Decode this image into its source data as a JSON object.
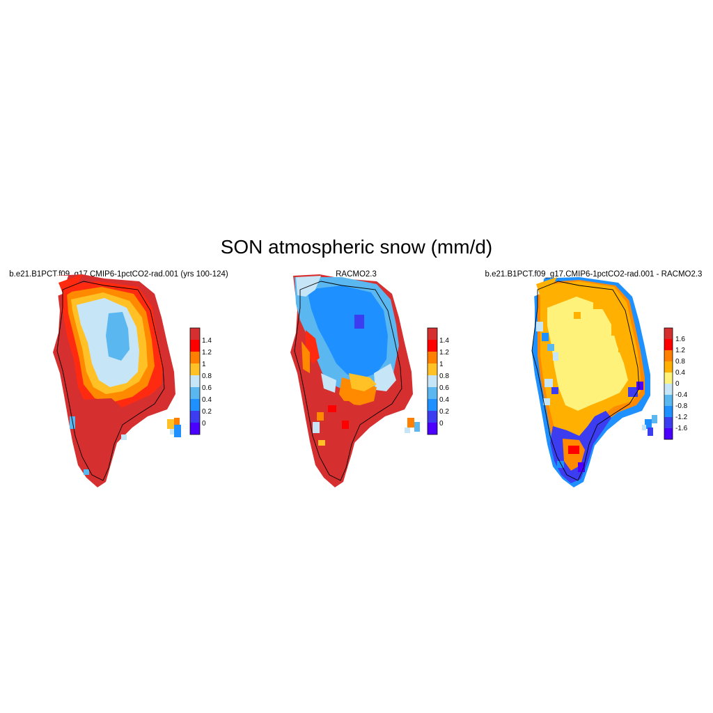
{
  "figure": {
    "title": "SON atmospheric snow (mm/d)"
  },
  "panels": [
    {
      "title": "b.e21.B1PCT.f09_g17.CMIP6-1pctCO2-rad.001 (yrs 100-124)",
      "colorbar": {
        "labels": [
          "1.4",
          "1.2",
          "1",
          "0.8",
          "0.6",
          "0.4",
          "0.2",
          "0"
        ],
        "colors": [
          "#d62f2f",
          "#ff0000",
          "#ff7f00",
          "#ffc125",
          "#c6e6f8",
          "#5ab7f0",
          "#1e90ff",
          "#3c3cf0",
          "#4b00ff"
        ]
      }
    },
    {
      "title": "RACMO2.3",
      "colorbar": {
        "labels": [
          "1.4",
          "1.2",
          "1",
          "0.8",
          "0.6",
          "0.4",
          "0.2",
          "0"
        ],
        "colors": [
          "#d62f2f",
          "#ff0000",
          "#ff7f00",
          "#ffc125",
          "#c6e6f8",
          "#5ab7f0",
          "#1e90ff",
          "#3c3cf0",
          "#4b00ff"
        ]
      }
    },
    {
      "title": "b.e21.B1PCT.f09_g17.CMIP6-1pctCO2-rad.001 - RACMO2.3",
      "colorbar": {
        "labels": [
          "1.6",
          "1.2",
          "0.8",
          "0.4",
          "0",
          "-0.4",
          "-0.8",
          "-1.2",
          "-1.6"
        ],
        "colors": [
          "#d62f2f",
          "#ff0000",
          "#ff7f00",
          "#ffb000",
          "#fff27a",
          "#c6e6f8",
          "#5ab7f0",
          "#1e90ff",
          "#3c3cf0",
          "#4b00ff"
        ]
      }
    }
  ]
}
